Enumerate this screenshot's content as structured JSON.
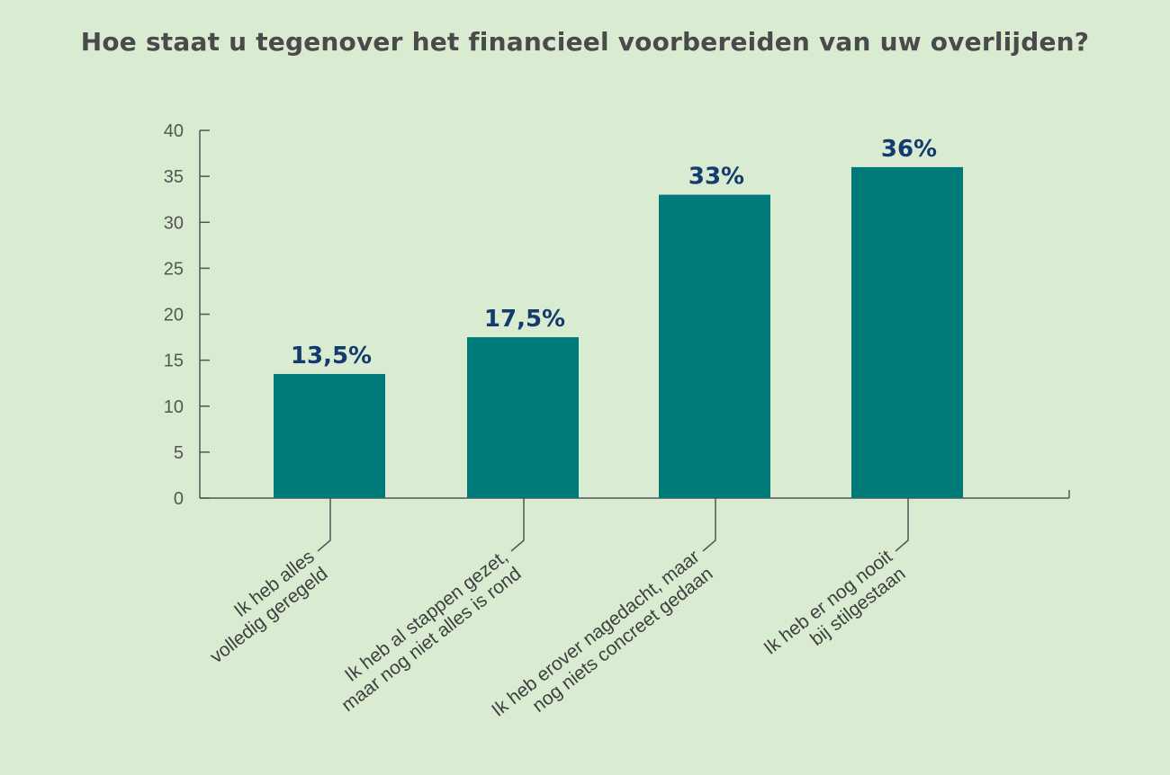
{
  "chart_data": {
    "type": "bar",
    "title": "Hoe staat u tegenover het financieel voorbereiden van uw overlijden?",
    "xlabel": "",
    "ylabel": "",
    "ylim": [
      0,
      40
    ],
    "yticks": [
      0,
      5,
      10,
      15,
      20,
      25,
      30,
      35,
      40
    ],
    "grid": false,
    "categories": [
      [
        "Ik heb alles",
        "volledig geregeld"
      ],
      [
        "Ik heb al stappen gezet,",
        "maar nog niet alles is rond"
      ],
      [
        "Ik heb erover nagedacht, maar",
        "nog niets concreet gedaan"
      ],
      [
        "Ik heb er nog nooit",
        "bij stilgestaan"
      ]
    ],
    "values": [
      13.5,
      17.5,
      33,
      36
    ],
    "data_labels": [
      "13,5%",
      "17,5%",
      "33%",
      "36%"
    ],
    "colors": {
      "bar": "#007a78",
      "data_label": "#143b6e",
      "axis": "#555555",
      "background": "#d9ecd2"
    }
  }
}
